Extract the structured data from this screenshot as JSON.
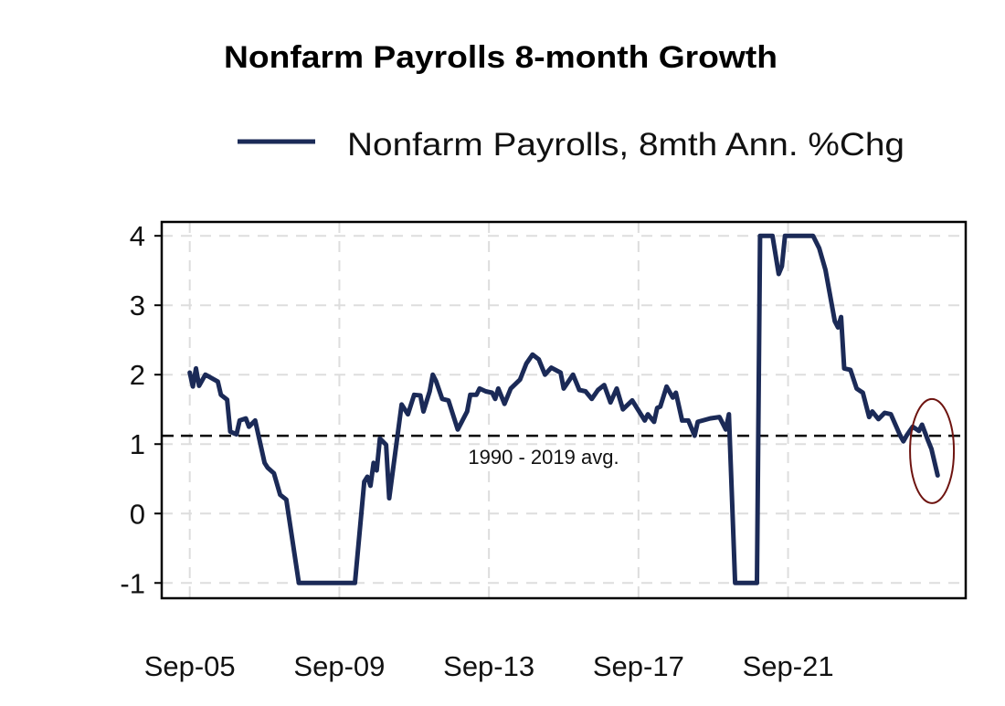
{
  "chart_data": {
    "type": "line",
    "title": "Nonfarm Payrolls 8-month Growth",
    "xlabel": "",
    "ylabel": "",
    "x_ticks": [
      "Sep-05",
      "Sep-09",
      "Sep-13",
      "Sep-17",
      "Sep-21"
    ],
    "x_tick_dates": [
      "2005-09",
      "2009-09",
      "2013-09",
      "2017-09",
      "2021-09"
    ],
    "xlim": [
      "2004-12",
      "2026-06"
    ],
    "y_ticks": [
      "4",
      "3",
      "2",
      "1",
      "0",
      "-1"
    ],
    "y_tick_values": [
      4,
      3,
      2,
      1,
      0,
      -1
    ],
    "ylim": [
      -1.22,
      4.2
    ],
    "grid": true,
    "legend_placement": "top",
    "colors": {
      "series": "#1b2a57",
      "average_line": "#000000",
      "highlight_ellipse": "#6e1410",
      "grid": "#dddddd"
    },
    "reference_line": {
      "value": 1.12,
      "label": "1990 - 2019 avg.",
      "style": "dashed"
    },
    "annotation": {
      "type": "ellipse",
      "label": "",
      "center_date": "2025-06",
      "center_value": 0.9
    },
    "series": [
      {
        "name": "Nonfarm Payrolls, 8mth Ann. %Chg",
        "points": [
          [
            "2005-09",
            2.03
          ],
          [
            "2005-10",
            1.83
          ],
          [
            "2005-11",
            2.09
          ],
          [
            "2005-12",
            1.84
          ],
          [
            "2006-02",
            2.0
          ],
          [
            "2006-06",
            1.9
          ],
          [
            "2006-07",
            1.71
          ],
          [
            "2006-09",
            1.64
          ],
          [
            "2006-10",
            1.18
          ],
          [
            "2006-12",
            1.14
          ],
          [
            "2007-01",
            1.34
          ],
          [
            "2007-03",
            1.37
          ],
          [
            "2007-04",
            1.25
          ],
          [
            "2007-06",
            1.34
          ],
          [
            "2007-09",
            0.73
          ],
          [
            "2007-10",
            0.66
          ],
          [
            "2007-12",
            0.58
          ],
          [
            "2008-02",
            0.27
          ],
          [
            "2008-04",
            0.2
          ],
          [
            "2008-08",
            -1
          ],
          [
            "2010-02",
            -1
          ],
          [
            "2010-05",
            0.46
          ],
          [
            "2010-06",
            0.53
          ],
          [
            "2010-07",
            0.4
          ],
          [
            "2010-08",
            0.73
          ],
          [
            "2010-09",
            0.62
          ],
          [
            "2010-10",
            1.08
          ],
          [
            "2010-12",
            0.99
          ],
          [
            "2011-01",
            0.22
          ],
          [
            "2011-05",
            1.57
          ],
          [
            "2011-07",
            1.43
          ],
          [
            "2011-09",
            1.71
          ],
          [
            "2011-11",
            1.7
          ],
          [
            "2011-12",
            1.47
          ],
          [
            "2012-02",
            1.76
          ],
          [
            "2012-03",
            2.0
          ],
          [
            "2012-04",
            1.91
          ],
          [
            "2012-06",
            1.65
          ],
          [
            "2012-08",
            1.63
          ],
          [
            "2012-11",
            1.21
          ],
          [
            "2013-02",
            1.47
          ],
          [
            "2013-03",
            1.71
          ],
          [
            "2013-05",
            1.71
          ],
          [
            "2013-06",
            1.8
          ],
          [
            "2013-08",
            1.76
          ],
          [
            "2013-10",
            1.74
          ],
          [
            "2013-11",
            1.65
          ],
          [
            "2013-12",
            1.8
          ],
          [
            "2014-02",
            1.58
          ],
          [
            "2014-04",
            1.8
          ],
          [
            "2014-07",
            1.93
          ],
          [
            "2014-09",
            2.16
          ],
          [
            "2014-11",
            2.29
          ],
          [
            "2015-01",
            2.22
          ],
          [
            "2015-03",
            2.0
          ],
          [
            "2015-05",
            2.1
          ],
          [
            "2015-08",
            2.03
          ],
          [
            "2015-09",
            1.8
          ],
          [
            "2015-12",
            2.0
          ],
          [
            "2016-02",
            1.78
          ],
          [
            "2016-04",
            1.76
          ],
          [
            "2016-06",
            1.65
          ],
          [
            "2016-08",
            1.78
          ],
          [
            "2016-10",
            1.85
          ],
          [
            "2016-12",
            1.6
          ],
          [
            "2017-02",
            1.8
          ],
          [
            "2017-04",
            1.5
          ],
          [
            "2017-07",
            1.63
          ],
          [
            "2017-11",
            1.34
          ],
          [
            "2017-12",
            1.43
          ],
          [
            "2018-02",
            1.32
          ],
          [
            "2018-03",
            1.52
          ],
          [
            "2018-04",
            1.54
          ],
          [
            "2018-06",
            1.83
          ],
          [
            "2018-08",
            1.67
          ],
          [
            "2018-09",
            1.74
          ],
          [
            "2018-11",
            1.34
          ],
          [
            "2019-01",
            1.34
          ],
          [
            "2019-03",
            1.12
          ],
          [
            "2019-04",
            1.32
          ],
          [
            "2019-08",
            1.37
          ],
          [
            "2019-11",
            1.39
          ],
          [
            "2020-01",
            1.21
          ],
          [
            "2020-02",
            1.43
          ],
          [
            "2020-04",
            -1
          ],
          [
            "2020-11",
            -1
          ],
          [
            "2020-12",
            4
          ],
          [
            "2021-04",
            4
          ],
          [
            "2021-06",
            3.45
          ],
          [
            "2021-07",
            3.56
          ],
          [
            "2021-08",
            4
          ],
          [
            "2022-05",
            4
          ],
          [
            "2022-07",
            3.82
          ],
          [
            "2022-09",
            3.51
          ],
          [
            "2022-12",
            2.77
          ],
          [
            "2023-01",
            2.68
          ],
          [
            "2023-02",
            2.83
          ],
          [
            "2023-03",
            2.09
          ],
          [
            "2023-05",
            2.07
          ],
          [
            "2023-07",
            1.8
          ],
          [
            "2023-09",
            1.74
          ],
          [
            "2023-11",
            1.39
          ],
          [
            "2023-12",
            1.47
          ],
          [
            "2024-02",
            1.36
          ],
          [
            "2024-04",
            1.45
          ],
          [
            "2024-06",
            1.43
          ],
          [
            "2024-09",
            1.12
          ],
          [
            "2024-10",
            1.04
          ],
          [
            "2024-11",
            1.12
          ],
          [
            "2025-01",
            1.25
          ],
          [
            "2025-03",
            1.19
          ],
          [
            "2025-04",
            1.28
          ],
          [
            "2025-06",
            1.04
          ],
          [
            "2025-07",
            0.93
          ],
          [
            "2025-09",
            0.55
          ]
        ]
      }
    ]
  }
}
